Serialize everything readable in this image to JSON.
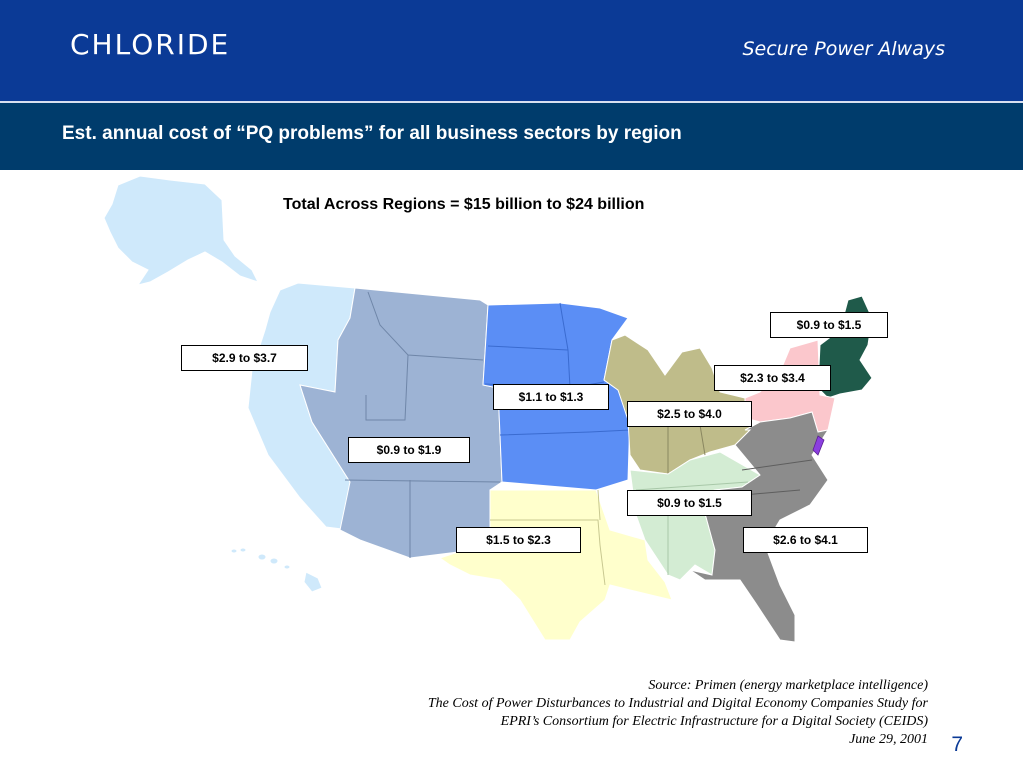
{
  "header": {
    "logo": "CHLORIDE",
    "tagline": "Secure Power Always"
  },
  "title": "Est. annual cost of “PQ problems” for all business sectors by region",
  "total": "Total Across Regions = $15 billion to $24 billion",
  "regions": {
    "pacific": {
      "label": "$2.9 to $3.7",
      "color": "#cfe9fb"
    },
    "mountain": {
      "label": "$0.9 to $1.9",
      "color": "#9db3d4"
    },
    "west_north_central": {
      "label": "$1.1 to $1.3",
      "color": "#5b8ef5"
    },
    "east_north_central": {
      "label": "$2.5 to $4.0",
      "color": "#bfbc8a"
    },
    "middle_atlantic": {
      "label": "$2.3 to $3.4",
      "color": "#fbc7cc"
    },
    "new_england": {
      "label": "$0.9 to $1.5",
      "color": "#1f5a4a"
    },
    "west_south_central": {
      "label": "$1.5 to $2.3",
      "color": "#ffffcc"
    },
    "east_south_central": {
      "label": "$0.9 to $1.5",
      "color": "#d3ecd3"
    },
    "south_atlantic": {
      "label": "$2.6 to $4.1",
      "color": "#8c8c8c"
    }
  },
  "source": [
    "Source: Primen (energy marketplace intelligence)",
    "The Cost of Power Disturbances to Industrial and Digital Economy Companies Study for",
    "EPRI’s Consortium for Electric Infrastructure for a Digital Society (CEIDS)",
    "June 29, 2001"
  ],
  "page_number": "7"
}
